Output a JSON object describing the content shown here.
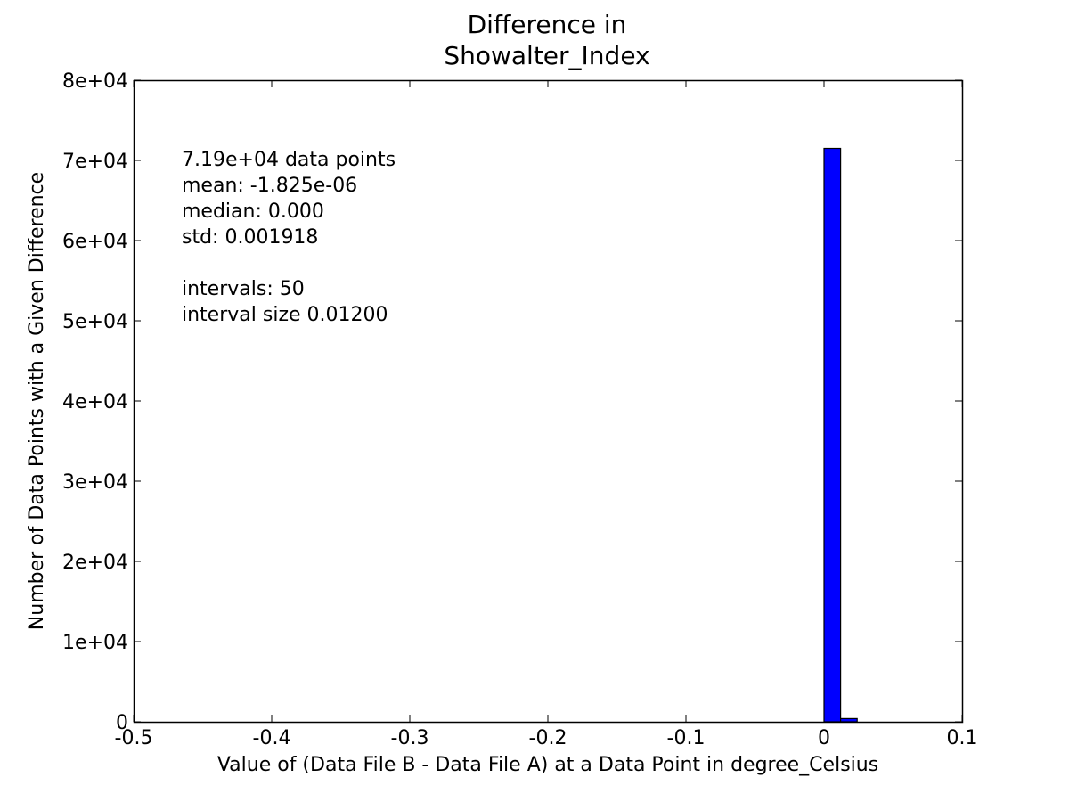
{
  "chart_data": {
    "type": "bar",
    "title_lines": [
      "Difference in",
      "Showalter_Index"
    ],
    "xlabel": "Value of (Data File B - Data File A) at a Data Point in degree_Celsius",
    "ylabel": "Number of Data Points with a Given Difference",
    "xlim": [
      -0.5,
      0.1
    ],
    "ylim": [
      0,
      80000
    ],
    "xticks": [
      {
        "value": -0.5,
        "label": "-0.5"
      },
      {
        "value": -0.4,
        "label": "-0.4"
      },
      {
        "value": -0.3,
        "label": "-0.3"
      },
      {
        "value": -0.2,
        "label": "-0.2"
      },
      {
        "value": -0.1,
        "label": "-0.1"
      },
      {
        "value": 0.0,
        "label": "0"
      },
      {
        "value": 0.1,
        "label": "0.1"
      }
    ],
    "yticks": [
      {
        "value": 0,
        "label": "0"
      },
      {
        "value": 10000,
        "label": "1e+04"
      },
      {
        "value": 20000,
        "label": "2e+04"
      },
      {
        "value": 30000,
        "label": "3e+04"
      },
      {
        "value": 40000,
        "label": "4e+04"
      },
      {
        "value": 50000,
        "label": "5e+04"
      },
      {
        "value": 60000,
        "label": "6e+04"
      },
      {
        "value": 70000,
        "label": "7e+04"
      },
      {
        "value": 80000,
        "label": "8e+04"
      }
    ],
    "bins": {
      "start": -0.516,
      "width": 0.012,
      "count": 50,
      "values": [
        0,
        0,
        0,
        0,
        0,
        0,
        0,
        0,
        0,
        0,
        0,
        0,
        0,
        0,
        0,
        0,
        0,
        0,
        0,
        0,
        0,
        0,
        0,
        0,
        0,
        0,
        0,
        0,
        0,
        0,
        0,
        0,
        0,
        0,
        0,
        0,
        0,
        0,
        0,
        0,
        0,
        0,
        0,
        71500,
        400,
        0,
        0,
        0,
        0,
        0
      ]
    },
    "bar_color": "#0000ff",
    "annotation_lines": [
      "7.19e+04 data points",
      "mean: -1.825e-06",
      "median: 0.000",
      "std: 0.001918",
      "",
      "intervals: 50",
      "interval size 0.01200"
    ],
    "grid": false,
    "legend": "none"
  }
}
